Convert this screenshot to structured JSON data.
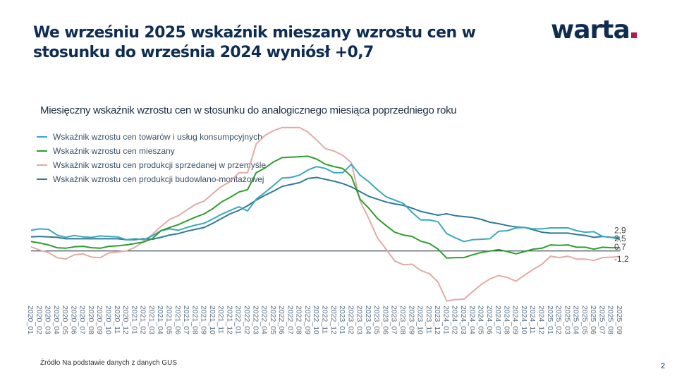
{
  "header": {
    "title": "We wrześniu 2025 wskaźnik mieszany wzrostu cen w stosunku do września 2024 wyniósł +0,7",
    "logo_text": "warta",
    "logo_dot_color": "#b5174b"
  },
  "footer": {
    "source": "Źródło  Na podstawie danych z  danych GUS",
    "page_number": "2"
  },
  "chart_data": {
    "type": "line",
    "title": "Miesięczny wskaźnik wzrostu cen w stosunku do analogicznego miesiąca poprzedniego roku",
    "xlabel": "",
    "ylabel": "",
    "ylim": [
      -12,
      26.3
    ],
    "grid": false,
    "zero_line": true,
    "legend_position": "top-left",
    "x": [
      "2020_01",
      "2020_02",
      "2020_03",
      "2020_04",
      "2020_05",
      "2020_06",
      "2020_07",
      "2020_08",
      "2020_09",
      "2020_10",
      "2020_11",
      "2020_12",
      "2021_01",
      "2021_02",
      "2021_03",
      "2021_04",
      "2021_05",
      "2021_06",
      "2021_07",
      "2021_08",
      "2021_09",
      "2021_10",
      "2021_11",
      "2021_12",
      "2022_01",
      "2022_02",
      "2022_03",
      "2022_04",
      "2022_05",
      "2022_06",
      "2022_07",
      "2022_08",
      "2022_09",
      "2022_10",
      "2022_11",
      "2022_12",
      "2023_01",
      "2023_02",
      "2023_03",
      "2023_04",
      "2023_05",
      "2023_06",
      "2023_07",
      "2023_08",
      "2023_09",
      "2023_10",
      "2023_11",
      "2023_12",
      "2024_01",
      "2024_02",
      "2024_03",
      "2024_04",
      "2024_05",
      "2024_06",
      "2024_07",
      "2024_08",
      "2024_09",
      "2024_10",
      "2024_11",
      "2024_12",
      "2025_01",
      "2025_02",
      "2025_03",
      "2025_04",
      "2025_05",
      "2025_06",
      "2025_07",
      "2025_08",
      "2025_09"
    ],
    "series": [
      {
        "name": "Wskaźnik wzrostu cen towarów i usług konsumpcyjnych",
        "color": "#3aa9bd",
        "end_label": "2,9",
        "values": [
          4.4,
          4.7,
          4.6,
          3.4,
          2.9,
          3.3,
          3.0,
          2.9,
          3.2,
          3.1,
          3.0,
          2.4,
          2.6,
          2.4,
          3.2,
          4.3,
          4.7,
          4.4,
          5.0,
          5.5,
          5.9,
          6.8,
          7.8,
          8.6,
          9.4,
          8.5,
          11.0,
          12.4,
          13.9,
          15.5,
          15.6,
          16.1,
          17.2,
          17.9,
          17.5,
          16.6,
          16.6,
          18.4,
          16.1,
          14.7,
          13.0,
          11.5,
          10.8,
          10.1,
          8.2,
          6.6,
          6.6,
          6.2,
          3.7,
          2.8,
          2.0,
          2.4,
          2.5,
          2.6,
          4.2,
          4.3,
          4.9,
          5.0,
          4.7,
          4.7,
          4.9,
          4.9,
          4.9,
          4.3,
          4.0,
          4.1,
          3.1,
          2.9,
          2.9
        ]
      },
      {
        "name": "Wskaźnik wzrostu cen mieszany",
        "color": "#2e9e2e",
        "end_label": "0,7",
        "values": [
          2.0,
          1.7,
          1.3,
          0.7,
          0.6,
          0.9,
          1.0,
          0.7,
          0.6,
          1.0,
          1.1,
          1.3,
          1.6,
          1.9,
          2.6,
          4.3,
          5.0,
          5.6,
          6.4,
          7.2,
          7.9,
          9.0,
          10.4,
          11.4,
          12.5,
          13.0,
          16.6,
          17.6,
          18.9,
          19.8,
          19.9,
          20.0,
          20.1,
          19.5,
          18.4,
          17.9,
          17.5,
          15.8,
          11.0,
          9.1,
          6.9,
          5.4,
          4.0,
          3.4,
          3.1,
          2.1,
          1.6,
          0.4,
          -1.5,
          -1.4,
          -1.4,
          -0.8,
          -0.3,
          0.0,
          0.3,
          -0.1,
          -0.6,
          -0.1,
          0.4,
          0.6,
          1.3,
          1.2,
          1.3,
          0.8,
          0.8,
          0.4,
          0.8,
          0.7,
          0.7
        ]
      },
      {
        "name": "Wskaźnik wzrostu cen produkcji sprzedanej w przemyśle",
        "color": "#e2aba6",
        "end_label": "-1,2",
        "values": [
          0.9,
          0.2,
          -0.3,
          -1.4,
          -1.7,
          -0.8,
          -0.6,
          -1.3,
          -1.4,
          -0.4,
          -0.2,
          0.0,
          0.8,
          2.0,
          3.5,
          5.2,
          6.7,
          7.5,
          8.7,
          9.9,
          10.6,
          12.2,
          13.7,
          14.7,
          16.6,
          16.6,
          22.7,
          24.5,
          25.5,
          26.2,
          26.2,
          26.2,
          25.2,
          23.5,
          21.7,
          21.2,
          20.3,
          18.7,
          10.6,
          6.9,
          2.8,
          0.4,
          -2.1,
          -2.9,
          -2.8,
          -4.1,
          -4.8,
          -6.6,
          -10.6,
          -10.3,
          -10.2,
          -8.6,
          -7.1,
          -5.9,
          -5.2,
          -5.6,
          -6.4,
          -5.1,
          -3.9,
          -2.8,
          -1.1,
          -1.4,
          -1.1,
          -1.7,
          -1.7,
          -2.0,
          -1.4,
          -1.3,
          -1.2
        ]
      },
      {
        "name": "Wskaźnik wzrostu cen produkcji budowlano-montażowej",
        "color": "#2f7a94",
        "end_label": "2,5",
        "values": [
          3.0,
          3.1,
          3.0,
          2.9,
          2.6,
          2.6,
          2.6,
          2.6,
          2.6,
          2.6,
          2.6,
          2.4,
          2.4,
          2.6,
          2.5,
          2.9,
          3.4,
          3.7,
          4.2,
          4.6,
          5.0,
          5.9,
          6.9,
          7.9,
          8.6,
          9.6,
          10.8,
          11.8,
          12.7,
          13.7,
          14.1,
          14.5,
          15.4,
          15.6,
          15.2,
          14.8,
          14.3,
          13.6,
          12.6,
          11.6,
          11.0,
          10.4,
          10.0,
          9.7,
          9.1,
          8.4,
          8.0,
          7.6,
          7.9,
          7.5,
          7.3,
          7.1,
          6.7,
          6.1,
          5.8,
          5.4,
          5.1,
          5.0,
          4.5,
          4.0,
          3.8,
          3.8,
          3.8,
          3.5,
          3.3,
          2.9,
          3.1,
          2.9,
          2.5
        ]
      }
    ]
  }
}
